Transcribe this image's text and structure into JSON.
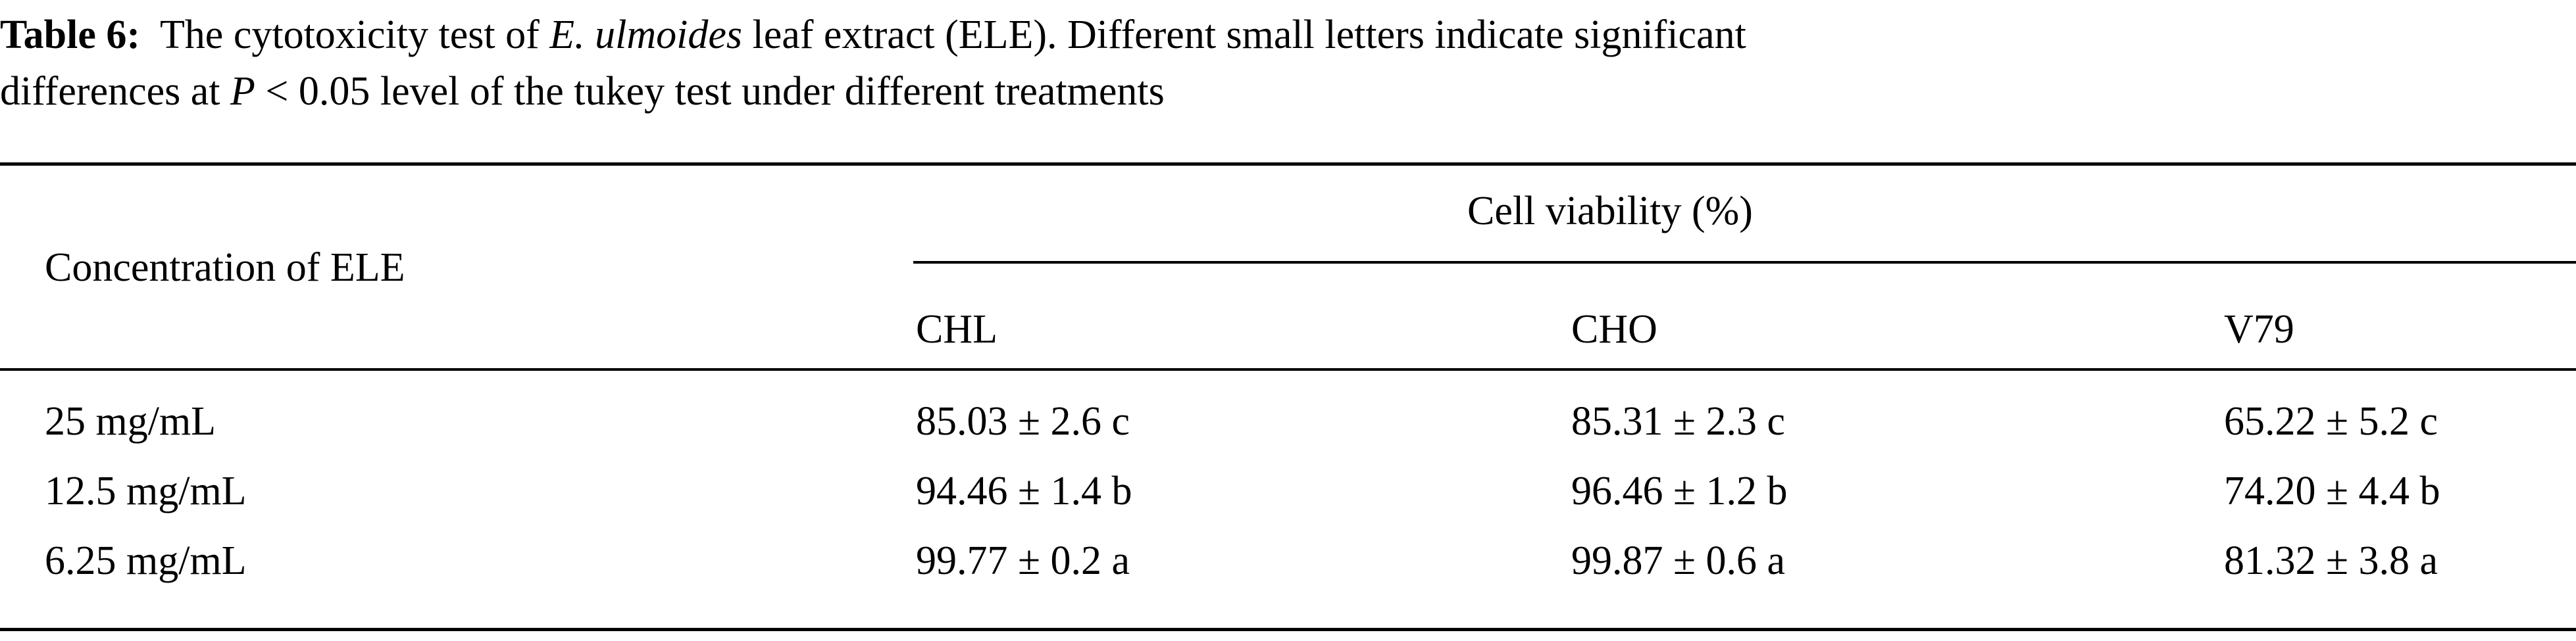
{
  "caption": {
    "label": "Table 6:",
    "line1_a": "The cytotoxicity test of ",
    "line1_species": "E. ulmoides",
    "line1_b": " leaf extract (ELE). Different small letters indicate significant",
    "line2_a": "differences at ",
    "line2_p": "P",
    "line2_b": " < 0.05 level of the tukey test under different treatments"
  },
  "table": {
    "row_header": "Concentration of ELE",
    "group_header": "Cell viability (%)",
    "columns": [
      "CHL",
      "CHO",
      "V79"
    ],
    "rows": [
      {
        "concentration": "25 mg/mL",
        "values": [
          "85.03 ± 2.6 c",
          "85.31 ± 2.3 c",
          "65.22 ± 5.2 c"
        ]
      },
      {
        "concentration": "12.5 mg/mL",
        "values": [
          "94.46 ± 1.4 b",
          "96.46 ± 1.2 b",
          "74.20 ± 4.4 b"
        ]
      },
      {
        "concentration": "6.25 mg/mL",
        "values": [
          "99.77 ± 0.2 a",
          "99.87 ± 0.6 a",
          "81.32 ± 3.8 a"
        ]
      }
    ]
  }
}
